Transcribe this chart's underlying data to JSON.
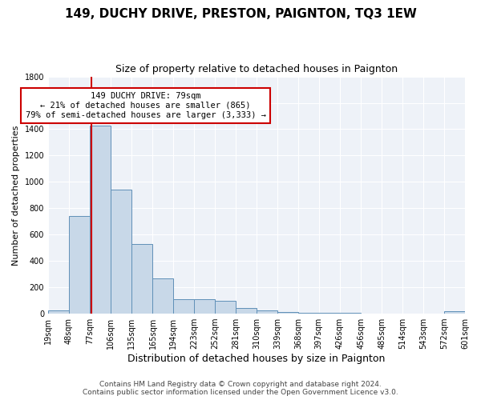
{
  "title": "149, DUCHY DRIVE, PRESTON, PAIGNTON, TQ3 1EW",
  "subtitle": "Size of property relative to detached houses in Paignton",
  "xlabel": "Distribution of detached houses by size in Paignton",
  "ylabel": "Number of detached properties",
  "footer_line1": "Contains HM Land Registry data © Crown copyright and database right 2024.",
  "footer_line2": "Contains public sector information licensed under the Open Government Licence v3.0.",
  "annotation_line1": "149 DUCHY DRIVE: 79sqm",
  "annotation_line2": "← 21% of detached houses are smaller (865)",
  "annotation_line3": "79% of semi-detached houses are larger (3,333) →",
  "property_sqm": 79,
  "bin_edges": [
    19,
    48,
    77,
    106,
    135,
    165,
    194,
    223,
    252,
    281,
    310,
    339,
    368,
    397,
    426,
    456,
    485,
    514,
    543,
    572,
    601
  ],
  "bar_heights": [
    25,
    740,
    1430,
    940,
    530,
    265,
    110,
    110,
    95,
    45,
    25,
    15,
    5,
    5,
    5,
    2,
    2,
    2,
    2,
    20
  ],
  "bar_color": "#c8d8e8",
  "bar_edge_color": "#6090b8",
  "vline_color": "#cc0000",
  "vline_x": 79,
  "bg_color": "#eef2f8",
  "ylim": [
    0,
    1800
  ],
  "annotation_box_color": "#cc0000",
  "annotation_fill": "#ffffff",
  "title_fontsize": 11,
  "subtitle_fontsize": 9,
  "xlabel_fontsize": 9,
  "ylabel_fontsize": 8,
  "tick_fontsize": 7,
  "footer_fontsize": 6.5
}
